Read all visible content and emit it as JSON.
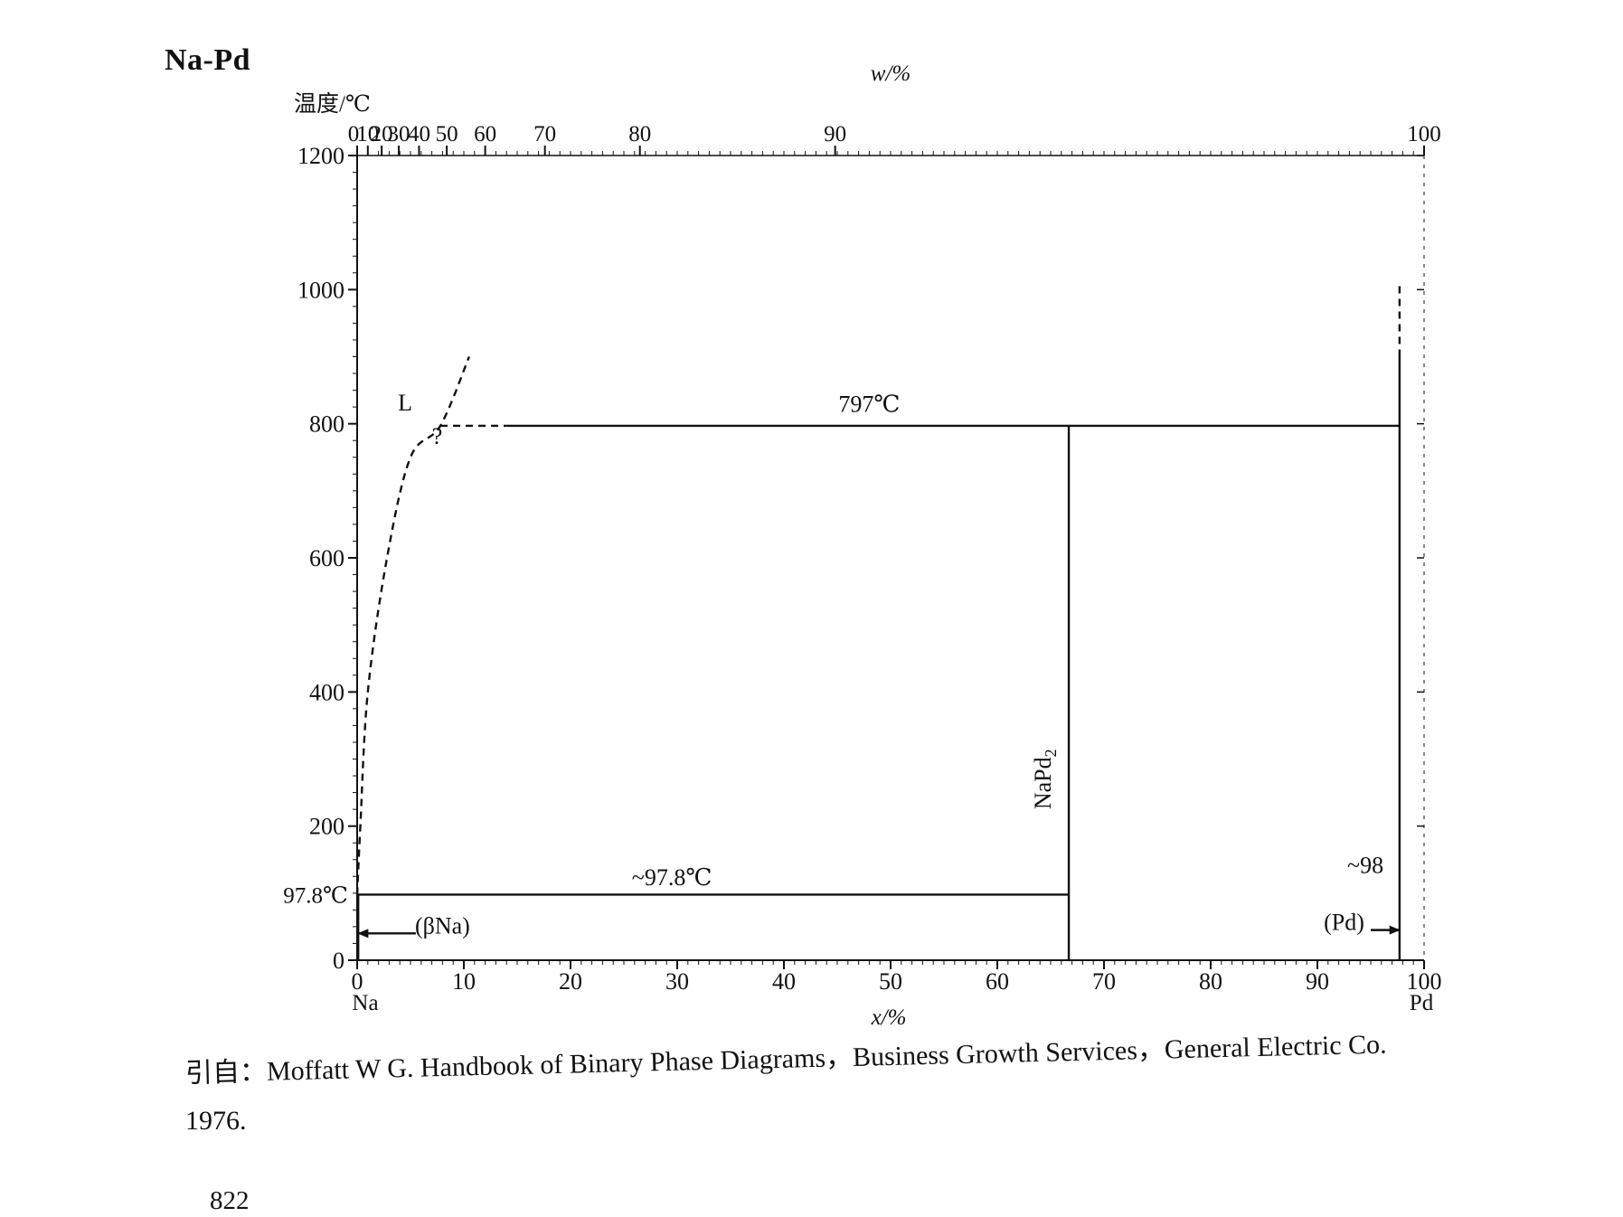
{
  "page": {
    "title": "Na-Pd",
    "citation_line1": "引自：Moffatt W G.  Handbook of Binary Phase Diagrams，Business Growth Services，General Electric Co.",
    "citation_line2": "1976.",
    "page_number": "822"
  },
  "chart_data": {
    "type": "line",
    "title": "Na-Pd",
    "ylabel": "温度/℃",
    "xlabel": "x/%",
    "x2label": "w/%",
    "xlim": [
      0,
      100
    ],
    "ylim": [
      0,
      1200
    ],
    "yticks": [
      0,
      200,
      400,
      600,
      800,
      1000,
      1200
    ],
    "yextra_label": "97.8℃",
    "xticks": [
      0,
      10,
      20,
      30,
      40,
      50,
      60,
      70,
      80,
      90,
      100
    ],
    "x_end_labels": {
      "left": "Na",
      "right": "Pd"
    },
    "top_axis": {
      "ticks": [
        {
          "label": "0",
          "x": 0
        },
        {
          "label": "10",
          "x": 1.0
        },
        {
          "label": "20",
          "x": 2.3
        },
        {
          "label": "30",
          "x": 3.9
        },
        {
          "label": "40",
          "x": 5.8
        },
        {
          "label": "50",
          "x": 8.4
        },
        {
          "label": "60",
          "x": 12.0
        },
        {
          "label": "70",
          "x": 17.6
        },
        {
          "label": "80",
          "x": 26.5
        },
        {
          "label": "90",
          "x": 44.8
        },
        {
          "label": "100",
          "x": 100
        }
      ]
    },
    "series": [
      {
        "style": "dashed",
        "points": [
          [
            0,
            97.8
          ],
          [
            0.3,
            200
          ],
          [
            1.0,
            400
          ],
          [
            2.8,
            600
          ],
          [
            5.0,
            750
          ],
          [
            7.8,
            797
          ],
          [
            10.5,
            900
          ]
        ]
      },
      {
        "style": "dashed",
        "points": [
          [
            7.8,
            797
          ],
          [
            14,
            797
          ]
        ]
      },
      {
        "style": "solid",
        "points": [
          [
            14,
            797
          ],
          [
            66.7,
            797
          ]
        ]
      },
      {
        "style": "solid",
        "points": [
          [
            66.7,
            797
          ],
          [
            97.7,
            797
          ]
        ]
      },
      {
        "style": "solid",
        "points": [
          [
            0,
            97.8
          ],
          [
            66.7,
            97.8
          ]
        ]
      },
      {
        "style": "solid",
        "points": [
          [
            66.7,
            0
          ],
          [
            66.7,
            797
          ]
        ]
      },
      {
        "style": "solid",
        "points": [
          [
            97.7,
            0
          ],
          [
            97.7,
            900
          ]
        ]
      },
      {
        "style": "dashed",
        "points": [
          [
            97.7,
            900
          ],
          [
            97.7,
            1010
          ]
        ]
      },
      {
        "style": "solid",
        "points": [
          [
            0.1,
            0
          ],
          [
            0.1,
            97.8
          ]
        ]
      }
    ],
    "annotations": [
      {
        "text": "797℃",
        "x": 48,
        "y": 818
      },
      {
        "text": "~97.8℃",
        "x": 29.5,
        "y": 112
      },
      {
        "text": "L",
        "x": 4.5,
        "y": 820
      },
      {
        "text": "?",
        "x": 7.5,
        "y": 770
      },
      {
        "text": "NaPd2",
        "x": 65.0,
        "y": 270,
        "rotate": -90
      },
      {
        "text": "(βNa)",
        "x": 8.0,
        "y": 40
      },
      {
        "text": "(Pd)",
        "x": 92.5,
        "y": 45
      },
      {
        "text": "~98",
        "x": 94.5,
        "y": 130
      }
    ]
  }
}
